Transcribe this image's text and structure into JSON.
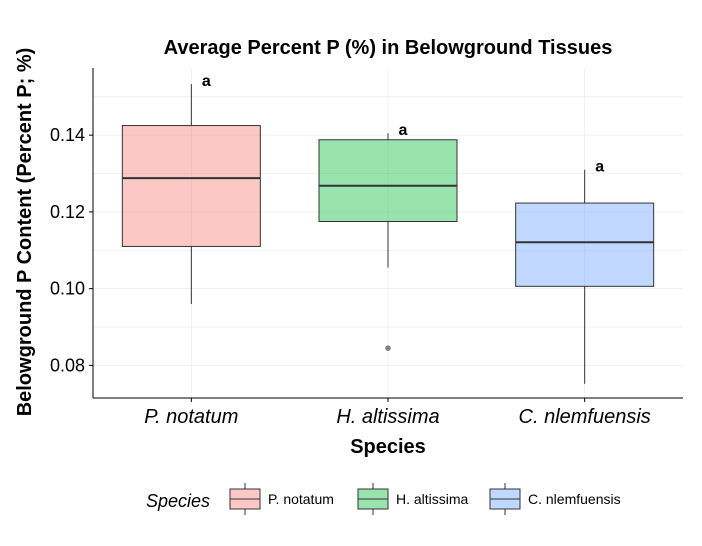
{
  "chart_data": {
    "type": "box",
    "title": "Average Percent P (%) in Belowground Tissues",
    "xlabel": "Species",
    "ylabel": "Belowground P Content (Percent P; %)",
    "ylim": [
      0.0715,
      0.1575
    ],
    "yticks": [
      "0.08",
      "0.10",
      "0.12",
      "0.14"
    ],
    "grid": true,
    "legend_position": "bottom",
    "legend_title": "Species",
    "categories": [
      "P. notatum",
      "H. altissima",
      "C. nlemfuensis"
    ],
    "series": [
      {
        "name": "P. notatum",
        "color": "#F8766D",
        "whisker_low": 0.096,
        "q1": 0.111,
        "median": 0.1288,
        "q3": 0.1425,
        "whisker_high": 0.1533,
        "outliers": [],
        "significance": "a"
      },
      {
        "name": "H. altissima",
        "color": "#00BA38",
        "whisker_low": 0.1055,
        "q1": 0.1175,
        "median": 0.1268,
        "q3": 0.1388,
        "whisker_high": 0.1405,
        "outliers": [
          0.0845
        ],
        "significance": "a"
      },
      {
        "name": "C. nlemfuensis",
        "color": "#619CFF",
        "whisker_low": 0.0752,
        "q1": 0.1006,
        "median": 0.1121,
        "q3": 0.1223,
        "whisker_high": 0.131,
        "outliers": [],
        "significance": "a"
      }
    ]
  }
}
